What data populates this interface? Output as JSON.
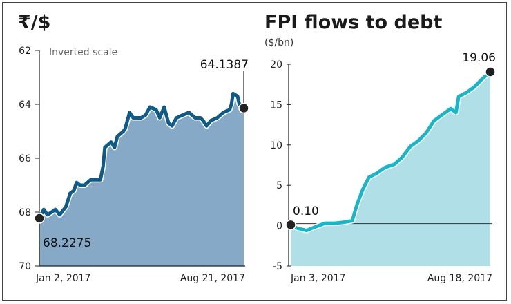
{
  "chart_data": [
    {
      "type": "area",
      "title": "₹/$",
      "annotation": "Inverted scale",
      "inverted": true,
      "ylim": [
        62,
        70
      ],
      "yticks": [
        "62",
        "64",
        "66",
        "68",
        "70"
      ],
      "ytick_values": [
        62,
        64,
        66,
        68,
        70
      ],
      "xlabels": [
        "Jan 2, 2017",
        "Aug 21, 2017"
      ],
      "x_days": [
        0,
        5,
        9,
        14,
        18,
        23,
        30,
        35,
        39,
        42,
        46,
        51,
        58,
        62,
        69,
        72,
        74,
        81,
        85,
        88,
        95,
        97,
        102,
        106,
        115,
        120,
        125,
        132,
        136,
        141,
        146,
        150,
        155,
        162,
        169,
        176,
        182,
        185,
        189,
        194,
        201,
        208,
        215,
        217,
        219,
        224,
        226,
        231
      ],
      "values": [
        68.23,
        67.9,
        68.1,
        68.0,
        67.9,
        68.1,
        67.8,
        67.3,
        67.2,
        66.9,
        67.0,
        67.0,
        66.8,
        66.8,
        66.8,
        66.3,
        65.6,
        65.4,
        65.6,
        65.2,
        65.0,
        64.9,
        64.3,
        64.5,
        64.5,
        64.4,
        64.1,
        64.2,
        64.5,
        64.1,
        64.7,
        64.8,
        64.5,
        64.4,
        64.3,
        64.5,
        64.5,
        64.6,
        64.8,
        64.6,
        64.5,
        64.3,
        64.2,
        64.0,
        63.6,
        63.7,
        64.0,
        64.14
      ],
      "start_label": "68.2275",
      "end_label": "64.1387",
      "fill": "#86a9c8",
      "line": "#0f5a87"
    },
    {
      "type": "area",
      "title": "FPI flows to debt",
      "ylabel": "($/bn)",
      "ylim": [
        -5,
        20
      ],
      "yticks": [
        "20",
        "15",
        "10",
        "5",
        "0",
        "-5"
      ],
      "ytick_values": [
        20,
        15,
        10,
        5,
        0,
        -5
      ],
      "xlabels": [
        "Jan 3, 2017",
        "Aug 18, 2017"
      ],
      "x_days": [
        0,
        7,
        18,
        27,
        39,
        50,
        59,
        70,
        75,
        82,
        89,
        98,
        107,
        118,
        127,
        136,
        145,
        154,
        163,
        173,
        182,
        188,
        191,
        200,
        209,
        218,
        227
      ],
      "values": [
        0.1,
        -0.3,
        -0.6,
        -0.2,
        0.3,
        0.3,
        0.4,
        0.6,
        2.5,
        4.5,
        6.0,
        6.5,
        7.2,
        7.6,
        8.5,
        9.8,
        10.5,
        11.5,
        13.0,
        13.8,
        14.5,
        14.0,
        16.0,
        16.5,
        17.2,
        18.2,
        19.06
      ],
      "start_label": "0.10",
      "end_label": "19.06",
      "fill": "#b0dfe8",
      "line": "#1ab5c8"
    }
  ]
}
